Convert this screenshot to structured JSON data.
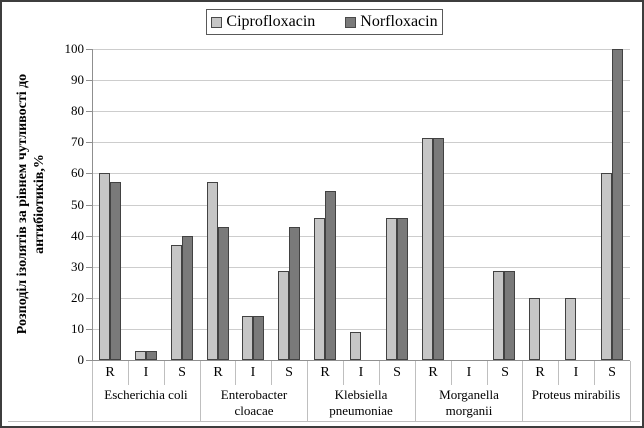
{
  "legend": {
    "items": [
      {
        "label": "Ciprofloxacin",
        "swatch_color": "#c6c6c6"
      },
      {
        "label": "Norfloxacin",
        "swatch_color": "#7a7a7a"
      }
    ]
  },
  "chart_data": {
    "type": "bar",
    "title": "",
    "ylabel": "Розподіл ізолятів за рівнем чутливості до\nантибіотиків,%",
    "xlabel": "",
    "ylim": [
      0,
      100
    ],
    "yticks": [
      0,
      10,
      20,
      30,
      40,
      50,
      60,
      70,
      80,
      90,
      100
    ],
    "grid": true,
    "legend_position": "top-center",
    "category_levels": [
      "susceptibility",
      "organism"
    ],
    "groups": [
      {
        "label": "Escherichia coli",
        "categories": [
          "R",
          "I",
          "S"
        ]
      },
      {
        "label": "Enterobacter cloacae",
        "categories": [
          "R",
          "I",
          "S"
        ]
      },
      {
        "label": "Klebsiella pneumoniae",
        "categories": [
          "R",
          "I",
          "S"
        ]
      },
      {
        "label": "Morganella morganii",
        "categories": [
          "R",
          "I",
          "S"
        ]
      },
      {
        "label": "Proteus mirabilis",
        "categories": [
          "R",
          "I",
          "S"
        ]
      }
    ],
    "series": [
      {
        "name": "Ciprofloxacin",
        "color": "#c6c6c6",
        "values": [
          [
            60,
            2.9,
            37.1
          ],
          [
            57.1,
            14.3,
            28.6
          ],
          [
            45.5,
            9.1,
            45.5
          ],
          [
            71.4,
            0,
            28.6
          ],
          [
            20,
            20,
            60
          ]
        ]
      },
      {
        "name": "Norfloxacin",
        "color": "#7a7a7a",
        "values": [
          [
            57.1,
            2.9,
            40
          ],
          [
            42.9,
            14.3,
            42.9
          ],
          [
            54.5,
            0,
            45.5
          ],
          [
            71.4,
            0,
            28.6
          ],
          [
            0,
            0,
            100
          ]
        ]
      }
    ],
    "colors": {
      "grid": "#cdcdcd",
      "axis": "#8f8f8f",
      "bar_border": "#424242",
      "label_table_border": "#bfbfbf",
      "figure_border": "#3d3d3d"
    }
  }
}
